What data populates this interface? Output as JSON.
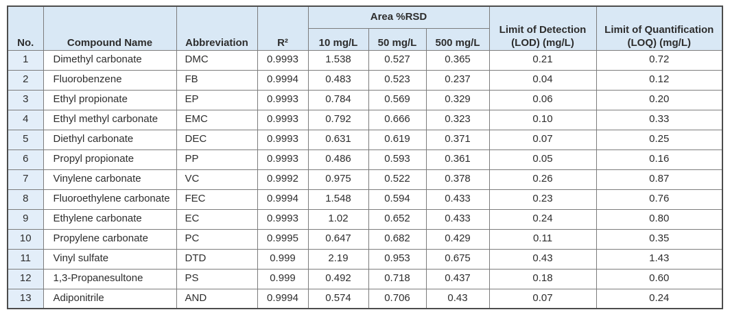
{
  "table": {
    "headers": {
      "no": "No.",
      "compound": "Compound Name",
      "abbreviation": "Abbreviation",
      "r2": "R²",
      "area_rsd": "Area %RSD",
      "rsd_levels": [
        "10 mg/L",
        "50 mg/L",
        "500 mg/L"
      ],
      "lod": "Limit of Detection (LOD) (mg/L)",
      "loq": "Limit of Quantification (LOQ) (mg/L)"
    },
    "column_keys": [
      "no",
      "compound",
      "abbr",
      "r2",
      "rsd10",
      "rsd50",
      "rsd500",
      "lod",
      "loq"
    ],
    "rows": [
      {
        "no": "1",
        "compound": "Dimethyl carbonate",
        "abbr": "DMC",
        "r2": "0.9993",
        "rsd10": "1.538",
        "rsd50": "0.527",
        "rsd500": "0.365",
        "lod": "0.21",
        "loq": "0.72"
      },
      {
        "no": "2",
        "compound": "Fluorobenzene",
        "abbr": "FB",
        "r2": "0.9994",
        "rsd10": "0.483",
        "rsd50": "0.523",
        "rsd500": "0.237",
        "lod": "0.04",
        "loq": "0.12"
      },
      {
        "no": "3",
        "compound": "Ethyl propionate",
        "abbr": "EP",
        "r2": "0.9993",
        "rsd10": "0.784",
        "rsd50": "0.569",
        "rsd500": "0.329",
        "lod": "0.06",
        "loq": "0.20"
      },
      {
        "no": "4",
        "compound": "Ethyl methyl carbonate",
        "abbr": "EMC",
        "r2": "0.9993",
        "rsd10": "0.792",
        "rsd50": "0.666",
        "rsd500": "0.323",
        "lod": "0.10",
        "loq": "0.33"
      },
      {
        "no": "5",
        "compound": "Diethyl carbonate",
        "abbr": "DEC",
        "r2": "0.9993",
        "rsd10": "0.631",
        "rsd50": "0.619",
        "rsd500": "0.371",
        "lod": "0.07",
        "loq": "0.25"
      },
      {
        "no": "6",
        "compound": "Propyl propionate",
        "abbr": "PP",
        "r2": "0.9993",
        "rsd10": "0.486",
        "rsd50": "0.593",
        "rsd500": "0.361",
        "lod": "0.05",
        "loq": "0.16"
      },
      {
        "no": "7",
        "compound": "Vinylene carbonate",
        "abbr": "VC",
        "r2": "0.9992",
        "rsd10": "0.975",
        "rsd50": "0.522",
        "rsd500": "0.378",
        "lod": "0.26",
        "loq": "0.87"
      },
      {
        "no": "8",
        "compound": "Fluoroethylene carbonate",
        "abbr": "FEC",
        "r2": "0.9994",
        "rsd10": "1.548",
        "rsd50": "0.594",
        "rsd500": "0.433",
        "lod": "0.23",
        "loq": "0.76"
      },
      {
        "no": "9",
        "compound": "Ethylene carbonate",
        "abbr": "EC",
        "r2": "0.9993",
        "rsd10": "1.02",
        "rsd50": "0.652",
        "rsd500": "0.433",
        "lod": "0.24",
        "loq": "0.80"
      },
      {
        "no": "10",
        "compound": "Propylene carbonate",
        "abbr": "PC",
        "r2": "0.9995",
        "rsd10": "0.647",
        "rsd50": "0.682",
        "rsd500": "0.429",
        "lod": "0.11",
        "loq": "0.35"
      },
      {
        "no": "11",
        "compound": "Vinyl sulfate",
        "abbr": "DTD",
        "r2": "0.999",
        "rsd10": "2.19",
        "rsd50": "0.953",
        "rsd500": "0.675",
        "lod": "0.43",
        "loq": "1.43"
      },
      {
        "no": "12",
        "compound": "1,3-Propanesultone",
        "abbr": "PS",
        "r2": "0.999",
        "rsd10": "0.492",
        "rsd50": "0.718",
        "rsd500": "0.437",
        "lod": "0.18",
        "loq": "0.60"
      },
      {
        "no": "13",
        "compound": "Adiponitrile",
        "abbr": "AND",
        "r2": "0.9994",
        "rsd10": "0.574",
        "rsd50": "0.706",
        "rsd500": "0.43",
        "lod": "0.07",
        "loq": "0.24"
      }
    ],
    "colors": {
      "header_bg": "#d9e8f5",
      "no_column_bg": "#e3eef9",
      "inner_border": "#7b7b7b",
      "outer_border": "#4c4c4c",
      "text": "#2d2d2d"
    }
  }
}
